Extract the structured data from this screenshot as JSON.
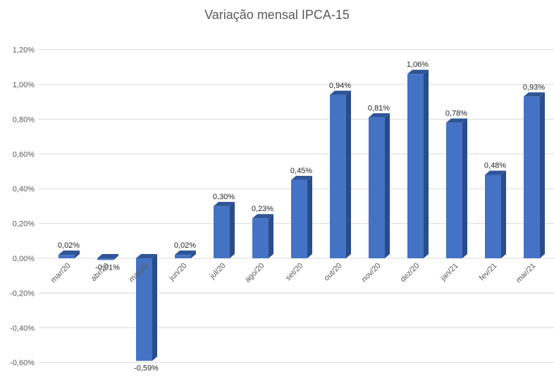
{
  "chart_data": {
    "type": "bar",
    "style": "3d-column",
    "title": "Variação mensal IPCA-15",
    "xlabel": "",
    "ylabel": "",
    "ylim": [
      -0.6,
      1.2
    ],
    "ytick_step": 0.2,
    "grid": true,
    "legend": "none",
    "colors": {
      "front": "#4472c4",
      "top": "#2f5597",
      "side": "#2a4d8a",
      "grid": "#d9d9d9",
      "text": "#595959"
    },
    "categories": [
      "mar/20",
      "abr/20",
      "mai/20",
      "jun/20",
      "jul/20",
      "ago/20",
      "set/20",
      "out/20",
      "nov/20",
      "dez/20",
      "jan/21",
      "fev/21",
      "mar/21"
    ],
    "values": [
      0.02,
      -0.01,
      -0.59,
      0.02,
      0.3,
      0.23,
      0.45,
      0.94,
      0.81,
      1.06,
      0.78,
      0.48,
      0.93
    ],
    "data_labels": [
      "0,02%",
      "-0,01%",
      "-0,59%",
      "0,02%",
      "0,30%",
      "0,23%",
      "0,45%",
      "0,94%",
      "0,81%",
      "1,06%",
      "0,78%",
      "0,48%",
      "0,93%"
    ],
    "y_tick_labels": [
      "-0,60%",
      "-0,40%",
      "-0,20%",
      "0,00%",
      "0,20%",
      "0,40%",
      "0,60%",
      "0,80%",
      "1,00%",
      "1,20%"
    ]
  }
}
